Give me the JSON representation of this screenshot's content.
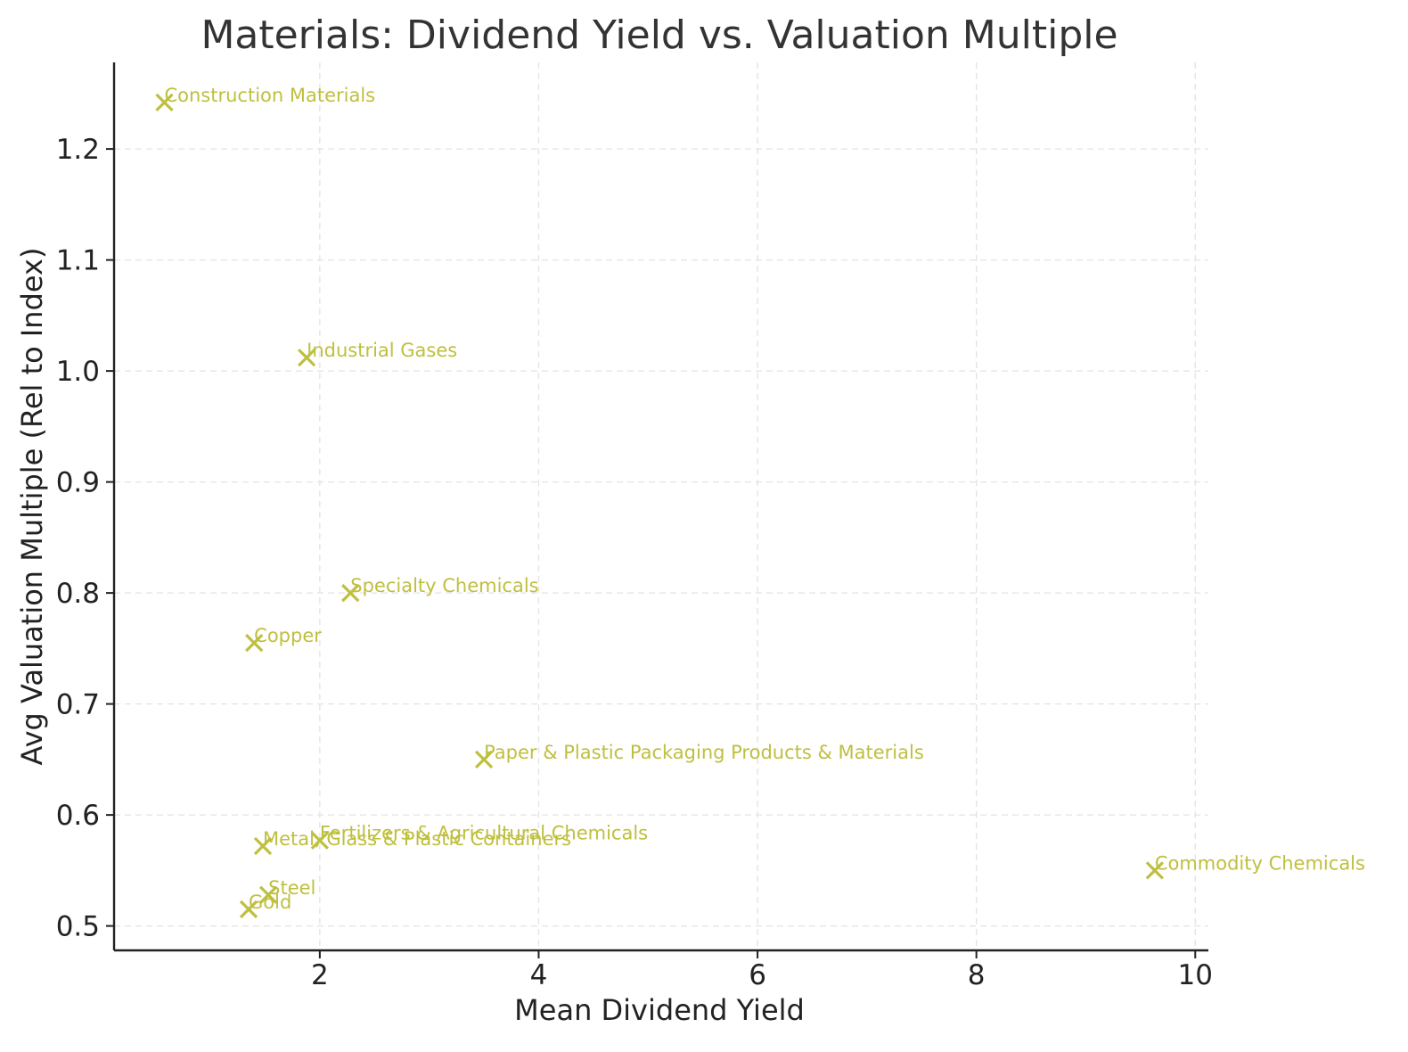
{
  "chart_data": {
    "type": "scatter",
    "title": "Materials: Dividend Yield vs. Valuation Multiple",
    "xlabel": "Mean Dividend Yield",
    "ylabel": "Avg Valuation Multiple (Rel to Index)",
    "xlim": [
      0.12,
      10.12
    ],
    "ylim": [
      0.478,
      1.278
    ],
    "x_ticks": [
      2,
      4,
      6,
      8,
      10
    ],
    "x_tick_labels": [
      "2",
      "4",
      "6",
      "8",
      "10"
    ],
    "y_ticks": [
      0.5,
      0.6,
      0.7,
      0.8,
      0.9,
      1.0,
      1.1,
      1.2
    ],
    "y_tick_labels": [
      "0.5",
      "0.6",
      "0.7",
      "0.8",
      "0.9",
      "1.0",
      "1.1",
      "1.2"
    ],
    "grid": true,
    "marker": "x",
    "color": "#bfbf3f",
    "points": [
      {
        "label": "Construction Materials",
        "x": 0.58,
        "y": 1.242
      },
      {
        "label": "Industrial Gases",
        "x": 1.88,
        "y": 1.012
      },
      {
        "label": "Specialty Chemicals",
        "x": 2.28,
        "y": 0.8
      },
      {
        "label": "Copper",
        "x": 1.4,
        "y": 0.755
      },
      {
        "label": "Paper & Plastic Packaging Products & Materials",
        "x": 3.5,
        "y": 0.65
      },
      {
        "label": "Fertilizers & Agricultural Chemicals",
        "x": 2.0,
        "y": 0.577
      },
      {
        "label": "Metal, Glass & Plastic Containers",
        "x": 1.48,
        "y": 0.572
      },
      {
        "label": "Commodity Chemicals",
        "x": 9.63,
        "y": 0.55
      },
      {
        "label": "Steel",
        "x": 1.53,
        "y": 0.528
      },
      {
        "label": "Gold",
        "x": 1.35,
        "y": 0.515
      }
    ]
  }
}
